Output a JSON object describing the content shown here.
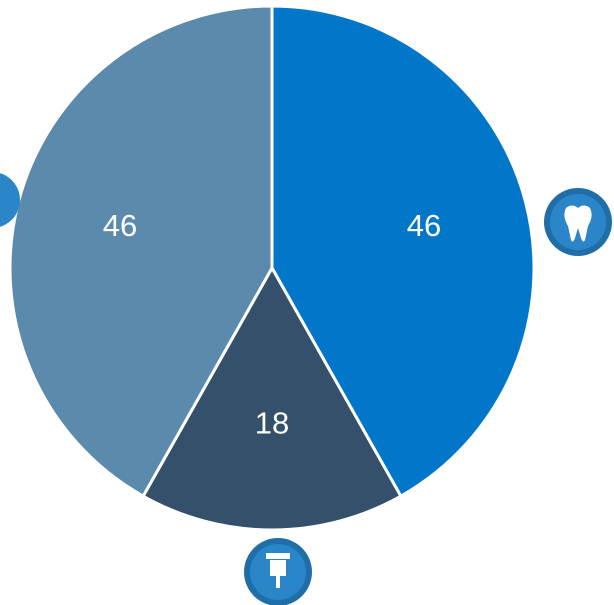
{
  "chart_data": {
    "type": "pie",
    "values": [
      46,
      18,
      46
    ],
    "colors": [
      "#0277c9",
      "#34506a",
      "#5b8aad"
    ]
  }
}
